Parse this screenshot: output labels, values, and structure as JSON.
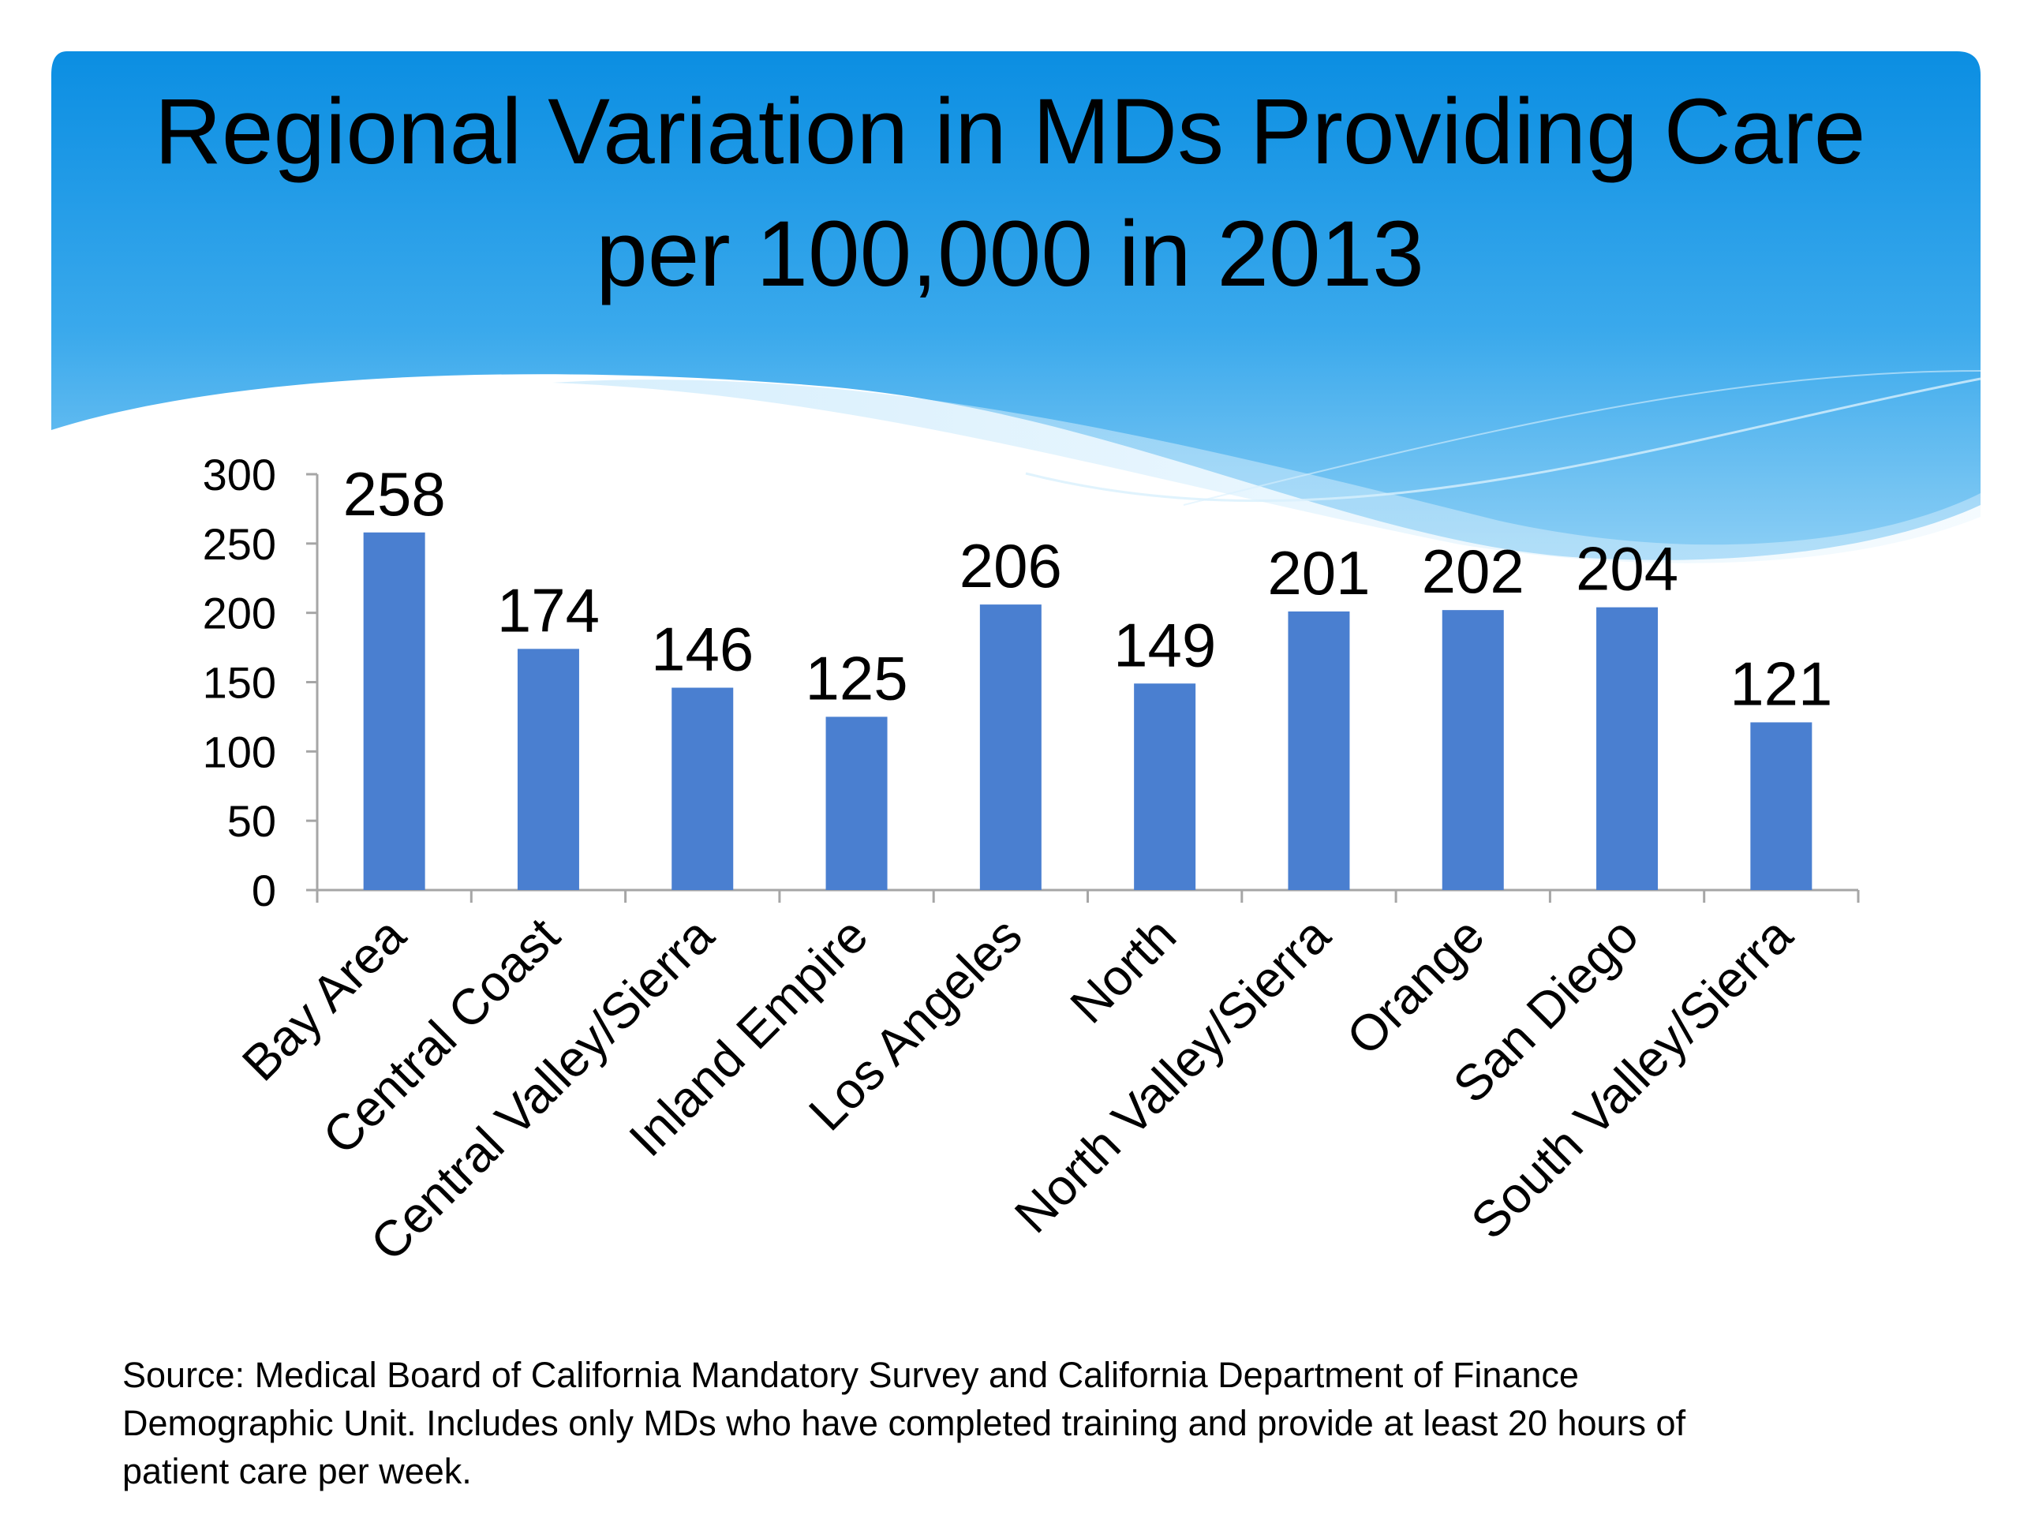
{
  "slide": {
    "title_line1": "Regional Variation in MDs Providing Care",
    "title_line2": "per 100,000 in 2013",
    "source_line1": "Source: Medical Board of California Mandatory Survey and California Department of Finance",
    "source_line2": "Demographic Unit. Includes only MDs who have completed training and provide at least 20 hours of",
    "source_line3": "patient care per week.",
    "colors": {
      "header_blue": "#0f8fe0",
      "header_light": "#9fd6f7",
      "bar_fill": "#4a7fd0"
    }
  },
  "chart_data": {
    "type": "bar",
    "title": "Regional Variation in MDs Providing Care per 100,000 in 2013",
    "categories": [
      "Bay Area",
      "Central Coast",
      "Central Valley/Sierra",
      "Inland Empire",
      "Los Angeles",
      "North",
      "North Valley/Sierra",
      "Orange",
      "San Diego",
      "South Valley/Sierra"
    ],
    "values": [
      258,
      174,
      146,
      125,
      206,
      149,
      201,
      202,
      204,
      121
    ],
    "data_labels": [
      "258",
      "174",
      "146",
      "125",
      "206",
      "149",
      "201",
      "202",
      "204",
      "121"
    ],
    "y_ticks": [
      0,
      50,
      100,
      150,
      200,
      250,
      300
    ],
    "ylim": [
      0,
      300
    ],
    "xlabel": "",
    "ylabel": "",
    "grid": false,
    "legend": "none"
  }
}
